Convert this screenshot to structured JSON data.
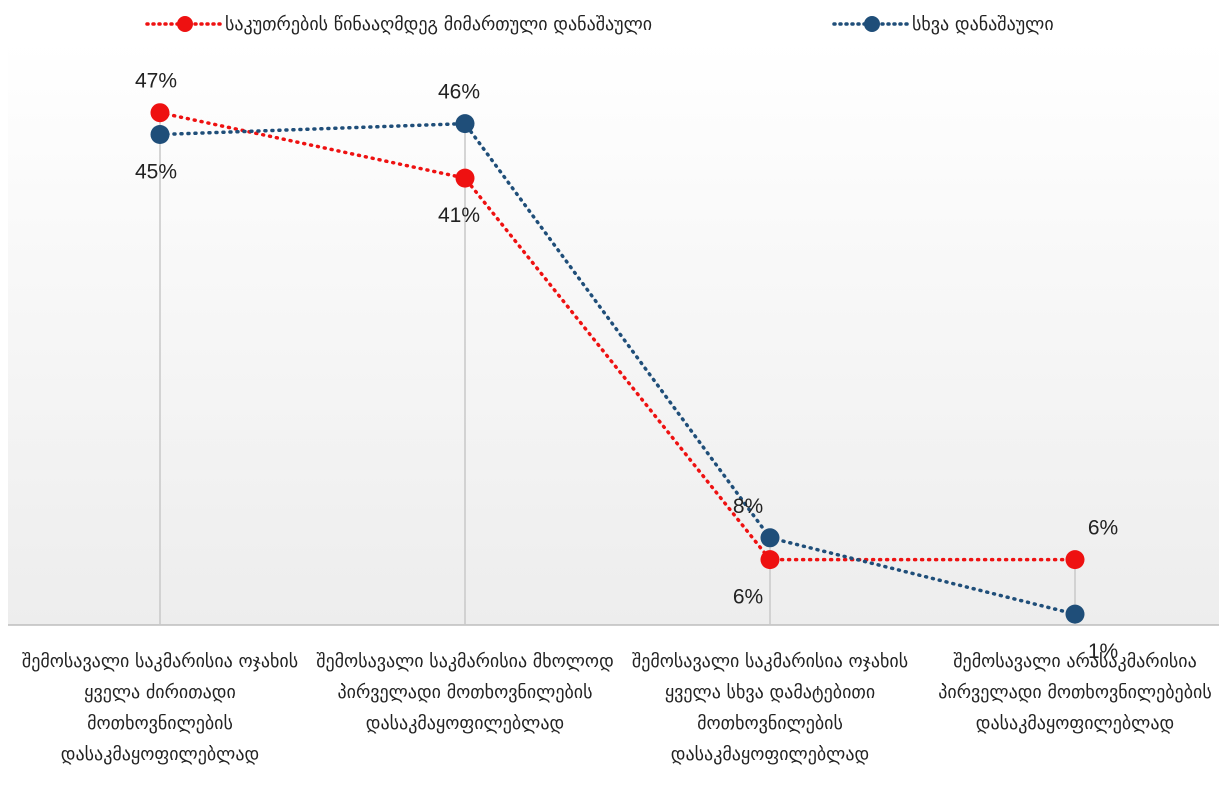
{
  "chart_data": {
    "type": "line",
    "categories": [
      "შემოსავალი საკმარისია ოჯახის ყველა ძირითადი მოთხოვნილების დასაკმაყოფილებლად",
      "შემოსავალი საკმარისია მხოლოდ პირველადი მოთხოვნილების დასაკმაყოფილებლად",
      "შემოსავალი საკმარისია ოჯახის ყველა სხვა დამატებითი მოთხოვნილების დასაკმაყოფილებლად",
      "შემოსავალი არასაკმარისია პირველადი მოთხოვნილებების დასაკმაყოფილებლად"
    ],
    "series": [
      {
        "name": "საკუთრების წინააღმდეგ მიმართული დანაშაული",
        "values": [
          47,
          41,
          6,
          6
        ],
        "labels": [
          "47%",
          "41%",
          "6%",
          "6%"
        ],
        "color": "#ee1111"
      },
      {
        "name": "სხვა დანაშაული",
        "values": [
          45,
          46,
          8,
          1
        ],
        "labels": [
          "45%",
          "46%",
          "8%",
          "1%"
        ],
        "color": "#1f4e79"
      }
    ],
    "ylim": [
      0,
      52
    ],
    "grid": false,
    "legend": "top",
    "line_style": "dotted",
    "drop_lines": true
  }
}
